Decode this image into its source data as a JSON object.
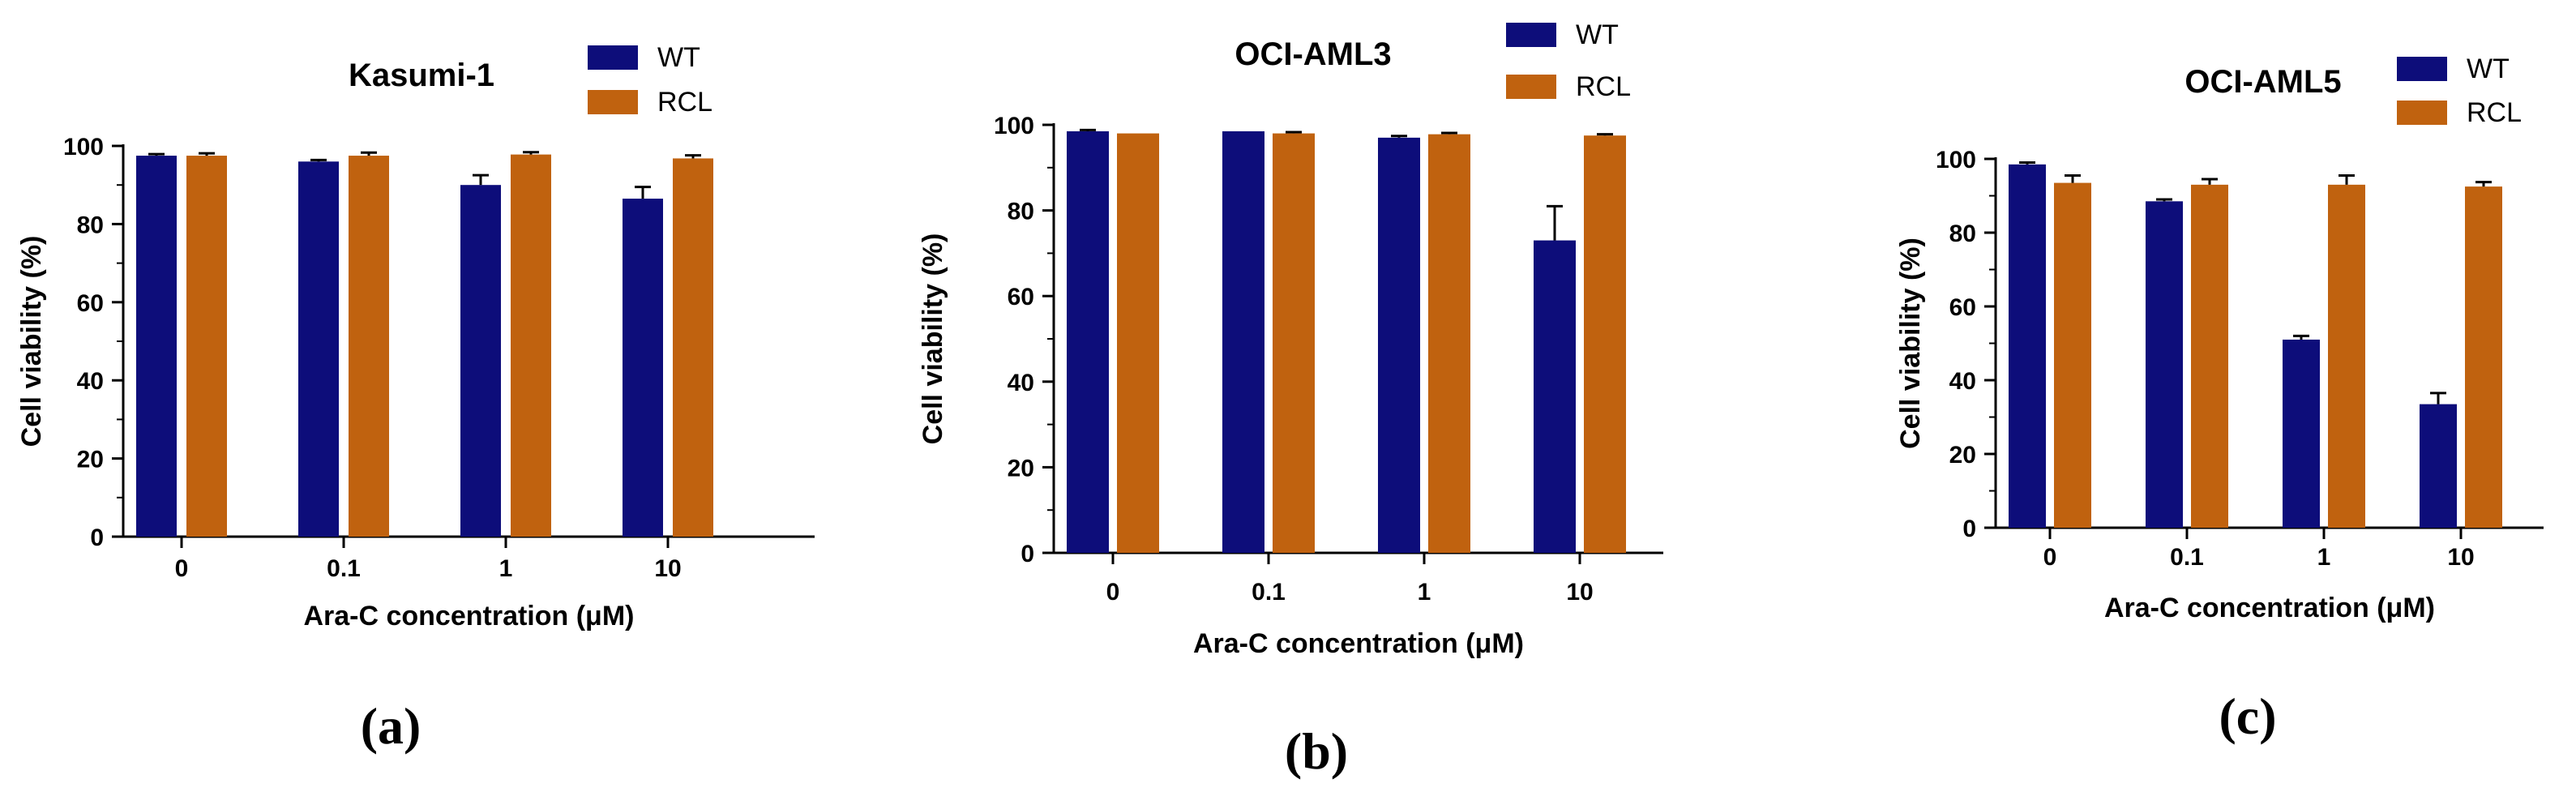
{
  "colors": {
    "wt": "#0d0d7a",
    "rcl": "#c0620f",
    "axis": "#000000"
  },
  "chart_data": [
    {
      "type": "bar",
      "panel": "(a)",
      "title": "Kasumi-1",
      "xlabel": "Ara-C  concentration (μM)",
      "ylabel": "Cell viability (%)",
      "ylim": [
        0,
        100
      ],
      "yticks": [
        "0",
        "20",
        "40",
        "60",
        "80",
        "100"
      ],
      "categories": [
        "0",
        "0.1",
        "1",
        "10"
      ],
      "legend": [
        "WT",
        "RCL"
      ],
      "series": [
        {
          "name": "WT",
          "values": [
            97.5,
            96,
            90,
            86.5
          ],
          "errors": [
            0.4,
            0.4,
            2.5,
            3
          ]
        },
        {
          "name": "RCL",
          "values": [
            97.5,
            97.5,
            97.8,
            96.8
          ],
          "errors": [
            0.6,
            0.8,
            0.6,
            0.8
          ]
        }
      ]
    },
    {
      "type": "bar",
      "panel": "(b)",
      "title": "OCI-AML3",
      "xlabel": "Ara-C  concentration (μM)",
      "ylabel": "Cell viability (%)",
      "ylim": [
        0,
        100
      ],
      "yticks": [
        "0",
        "20",
        "40",
        "60",
        "80",
        "100"
      ],
      "categories": [
        "0",
        "0.1",
        "1",
        "10"
      ],
      "legend": [
        "WT",
        "RCL"
      ],
      "series": [
        {
          "name": "WT",
          "values": [
            98.5,
            98.5,
            97,
            73
          ],
          "errors": [
            0.3,
            0,
            0.4,
            8
          ]
        },
        {
          "name": "RCL",
          "values": [
            98,
            98,
            97.8,
            97.5
          ],
          "errors": [
            0,
            0.3,
            0.3,
            0.3
          ]
        }
      ]
    },
    {
      "type": "bar",
      "panel": "(c)",
      "title": "OCI-AML5",
      "xlabel": "Ara-C  concentration (μM)",
      "ylabel": "Cell viability (%)",
      "ylim": [
        0,
        100
      ],
      "yticks": [
        "0",
        "20",
        "40",
        "60",
        "80",
        "100"
      ],
      "categories": [
        "0",
        "0.1",
        "1",
        "10"
      ],
      "legend": [
        "WT",
        "RCL"
      ],
      "series": [
        {
          "name": "WT",
          "values": [
            98.5,
            88.5,
            51,
            33.5
          ],
          "errors": [
            0.5,
            0.5,
            1,
            3
          ]
        },
        {
          "name": "RCL",
          "values": [
            93.5,
            93,
            93,
            92.5
          ],
          "errors": [
            2,
            1.5,
            2.5,
            1.2
          ]
        }
      ]
    }
  ]
}
